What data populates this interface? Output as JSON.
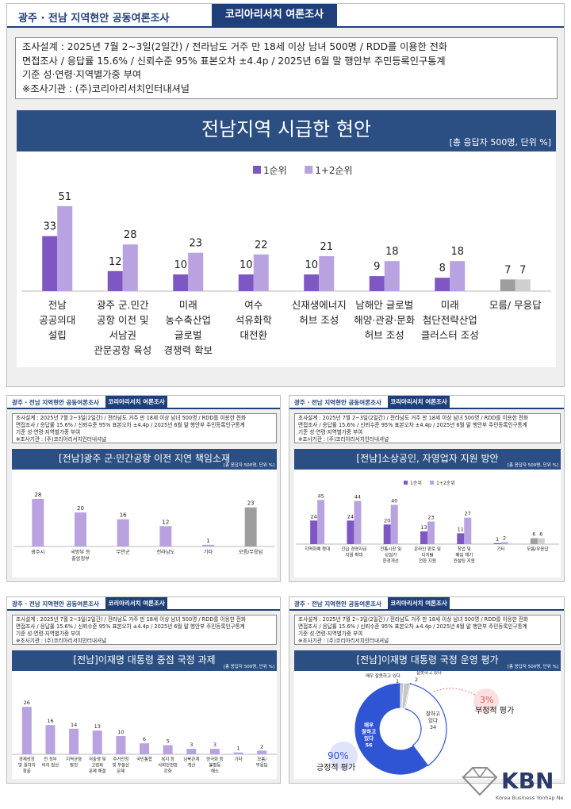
{
  "header": {
    "survey_name": "광주 · 전남 지역현안 공동여론조사",
    "badge": "코리아리서치 여론조사"
  },
  "methodology": {
    "line1": "조사설계 : 2025년 7월 2~3일(2일간) / 전라남도 거주 만 18세 이상 남녀 500명 / RDD를 이용한 전화",
    "line2": "면접조사 / 응답률 15.6% / 신뢰수준 95% 표본오차 ±4.4p / 2025년 6월 말 행안부 주민등록인구통계",
    "line3": "기준 성·연령·지역별가중 부여",
    "line4": "※조사기관 : (주)코리아리서치인터내셔널"
  },
  "sample_note": "[총 응답자 500명, 단위 %]",
  "colors": {
    "navy": "#2b4f83",
    "dark_purple": "#7e57c2",
    "light_purple": "#b9a2e0",
    "dark_gray": "#9e9e9e",
    "light_gray": "#cfcfcf",
    "donut_blue": "#2f55d4",
    "donut_gray": "#c8c8c8",
    "accent_red": "#e05a5a"
  },
  "chart_data": [
    {
      "type": "bar",
      "title": "전남지역 시급한 현안",
      "legend": [
        "1순위",
        "1+2순위"
      ],
      "categories": [
        [
          "전남",
          "공공의대",
          "설립"
        ],
        [
          "광주 군.민간",
          "공항 이전 및",
          "서남권",
          "관문공항 육성"
        ],
        [
          "미래",
          "농수축산업",
          "글로벌",
          "경쟁력 확보"
        ],
        [
          "여수",
          "석유화학",
          "대전환"
        ],
        [
          "신재생에너지",
          "허브 조성"
        ],
        [
          "남해안 글로벌",
          "해양·관광·문화",
          "허브 조성"
        ],
        [
          "미래",
          "첨단전략산업",
          "클러스터 조성"
        ],
        [
          "모름/ 무응답"
        ]
      ],
      "series": [
        {
          "name": "1순위",
          "values": [
            33,
            12,
            10,
            10,
            10,
            9,
            8,
            7
          ]
        },
        {
          "name": "1+2순위",
          "values": [
            51,
            28,
            23,
            22,
            21,
            18,
            18,
            7
          ]
        }
      ],
      "ylim": [
        0,
        60
      ]
    },
    {
      "type": "bar",
      "title": "[전남]광주 군·민간공항 이전 지연 책임소재",
      "categories": [
        [
          "광주시"
        ],
        [
          "국방부 등",
          "중앙정부"
        ],
        [
          "무안군"
        ],
        [
          "전라남도"
        ],
        [
          "기타"
        ],
        [
          "모름/무응답"
        ]
      ],
      "values": [
        28,
        20,
        16,
        12,
        1,
        23
      ],
      "ylim": [
        0,
        35
      ]
    },
    {
      "type": "bar",
      "title": "[전남]소상공인, 자영업자 지원 방안",
      "legend": [
        "1순위",
        "1+2순위"
      ],
      "categories": [
        [
          "지역화폐 확대"
        ],
        [
          "긴급 경영자금",
          "지원 확대"
        ],
        [
          "전통시장 및",
          "상점가",
          "환경개선"
        ],
        [
          "온라인 판로 및",
          "디지털",
          "전환 지원"
        ],
        [
          "창업 및",
          "폐업 재기",
          "컨설팅 지원"
        ],
        [
          "기타"
        ],
        [
          "모름/무응답"
        ]
      ],
      "series": [
        {
          "name": "1순위",
          "values": [
            24,
            24,
            20,
            13,
            11,
            1,
            6
          ]
        },
        {
          "name": "1+2순위",
          "values": [
            45,
            44,
            40,
            23,
            27,
            2,
            6
          ]
        }
      ],
      "ylim": [
        0,
        55
      ]
    },
    {
      "type": "bar",
      "title": "[전남]이재명 대통령 중점 국정 과제",
      "categories": [
        [
          "경제성장",
          "및 일자리",
          "창출"
        ],
        [
          "전 정부",
          "비리 청산"
        ],
        [
          "지역균형",
          "발전"
        ],
        [
          "저출생 및",
          "고령화",
          "문제 해결"
        ],
        [
          "주거안정",
          "및 부동산",
          "문제"
        ],
        [
          "국민통합"
        ],
        [
          "복지 등",
          "사회안전망",
          "강화"
        ],
        [
          "남북관계",
          "개선"
        ],
        [
          "양극화 등",
          "불평등",
          "해소"
        ],
        [
          "기타"
        ],
        [
          "모름/",
          "무응답"
        ]
      ],
      "values": [
        26,
        16,
        14,
        13,
        10,
        6,
        5,
        3,
        3,
        1,
        2
      ],
      "ylim": [
        0,
        30
      ]
    },
    {
      "type": "pie",
      "title": "[전남]이재명 대통령 국정 운영 평가",
      "slices": [
        {
          "name": "매우 잘하고 있다",
          "label": [
            "매우",
            "잘하고",
            "있다"
          ],
          "value": 56
        },
        {
          "name": "잘하고 있다",
          "label": [
            "잘하고",
            "있다"
          ],
          "value": 34
        },
        {
          "name": "잘못하고 있다",
          "value": 2
        },
        {
          "name": "매우 잘못하고 있다",
          "value": 1
        }
      ],
      "callout_labels": {
        "very_bad": "매우 잘못하고 있다",
        "bad": "잘못하고 있다"
      },
      "positive": {
        "value": "90%",
        "label": "긍정적 평가"
      },
      "negative": {
        "value": "3%",
        "label": "부정적 평가"
      }
    }
  ],
  "logo": {
    "text": "KBN",
    "subtitle": "Korea Business Yonhap News"
  }
}
